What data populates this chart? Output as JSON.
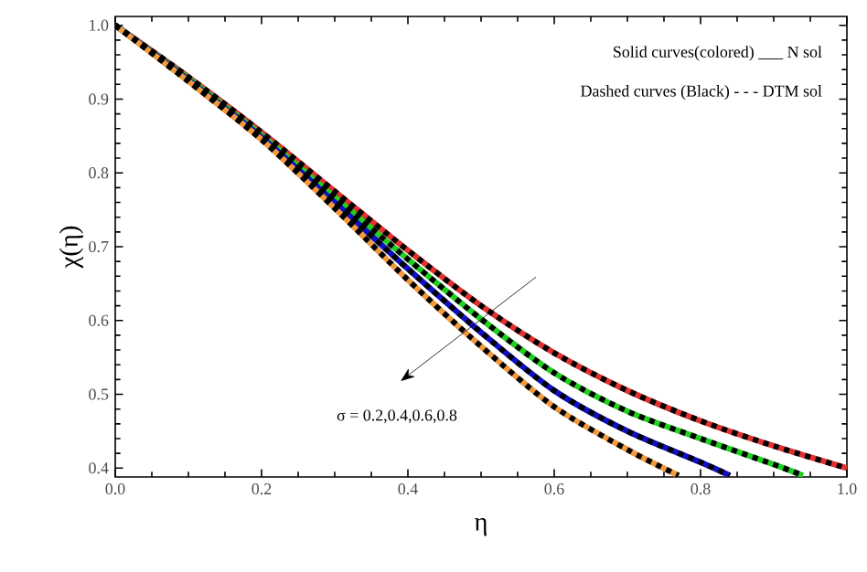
{
  "chart_data": {
    "type": "line",
    "xlabel": "η",
    "ylabel": "χ(η)",
    "annotations": [
      "Solid curves(colored) ___ N sol",
      "Dashed curves (Black) - - - DTM sol",
      "σ = 0.2,0.4,0.6,0.8"
    ],
    "xlim": [
      0,
      1.0
    ],
    "ylim": [
      0.388,
      1.012
    ],
    "xticks": [
      {
        "value": 0,
        "label": "0.0"
      },
      0.2,
      0.4,
      0.6,
      0.8,
      {
        "value": 1.0,
        "label": "1.0"
      }
    ],
    "yticks": [
      0.4,
      0.5,
      0.6,
      0.7,
      0.8,
      0.9,
      {
        "value": 1.0,
        "label": "1.0"
      }
    ],
    "grid": false,
    "series": [
      {
        "color": "#e03030",
        "line_style": "solid",
        "x": [
          0,
          0.1,
          0.2,
          0.3,
          0.4,
          0.5,
          0.6,
          0.7,
          0.8,
          0.9,
          1.0
        ],
        "values": [
          1.0,
          0.93,
          0.855,
          0.775,
          0.695,
          0.62,
          0.556,
          0.505,
          0.464,
          0.43,
          0.4
        ]
      },
      {
        "color": "#20d020",
        "line_style": "solid",
        "x": [
          0,
          0.1,
          0.2,
          0.3,
          0.4,
          0.5,
          0.6,
          0.7,
          0.8,
          0.9,
          0.94
        ],
        "values": [
          1.0,
          0.928,
          0.851,
          0.767,
          0.683,
          0.602,
          0.529,
          0.477,
          0.44,
          0.405,
          0.39
        ]
      },
      {
        "color": "#1010c0",
        "line_style": "solid",
        "x": [
          0,
          0.1,
          0.2,
          0.3,
          0.4,
          0.5,
          0.6,
          0.7,
          0.8,
          0.84
        ],
        "values": [
          1.0,
          0.926,
          0.848,
          0.76,
          0.67,
          0.584,
          0.505,
          0.45,
          0.408,
          0.39
        ]
      },
      {
        "color": "#f09a40",
        "line_style": "solid",
        "x": [
          0,
          0.1,
          0.2,
          0.3,
          0.4,
          0.5,
          0.6,
          0.7,
          0.77
        ],
        "values": [
          1.0,
          0.924,
          0.845,
          0.752,
          0.655,
          0.565,
          0.483,
          0.425,
          0.39
        ]
      },
      {
        "color": "#000000",
        "line_style": "dashed",
        "x": [
          0,
          0.1,
          0.2,
          0.3,
          0.4,
          0.5,
          0.6,
          0.7,
          0.8,
          0.9,
          1.0
        ],
        "values": [
          1.0,
          0.93,
          0.855,
          0.775,
          0.695,
          0.62,
          0.556,
          0.505,
          0.464,
          0.43,
          0.4
        ]
      },
      {
        "color": "#000000",
        "line_style": "dashed",
        "x": [
          0,
          0.1,
          0.2,
          0.3,
          0.4,
          0.5,
          0.6,
          0.7,
          0.8,
          0.9,
          0.94
        ],
        "values": [
          1.0,
          0.928,
          0.851,
          0.767,
          0.683,
          0.602,
          0.529,
          0.477,
          0.44,
          0.405,
          0.39
        ]
      },
      {
        "color": "#000000",
        "line_style": "dashed",
        "x": [
          0,
          0.1,
          0.2,
          0.3,
          0.4,
          0.5,
          0.6,
          0.7,
          0.8,
          0.84
        ],
        "values": [
          1.0,
          0.926,
          0.848,
          0.76,
          0.67,
          0.584,
          0.505,
          0.45,
          0.408,
          0.39
        ]
      },
      {
        "color": "#000000",
        "line_style": "dashed",
        "x": [
          0,
          0.1,
          0.2,
          0.3,
          0.4,
          0.5,
          0.6,
          0.7,
          0.77
        ],
        "values": [
          1.0,
          0.924,
          0.845,
          0.752,
          0.655,
          0.565,
          0.483,
          0.425,
          0.39
        ]
      }
    ]
  }
}
